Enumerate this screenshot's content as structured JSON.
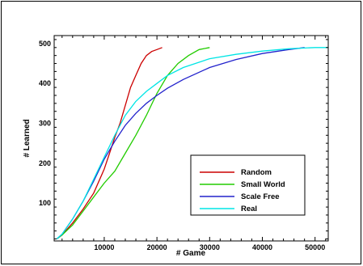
{
  "chart_data": {
    "type": "line",
    "title": "",
    "xlabel": "# Game",
    "ylabel": "# Learned",
    "xlim": [
      500,
      52500
    ],
    "ylim": [
      5,
      520
    ],
    "xticks": [
      10000,
      20000,
      30000,
      40000,
      50000
    ],
    "yticks": [
      100,
      200,
      300,
      400,
      500
    ],
    "grid": false,
    "legend_position": "lower-right",
    "series": [
      {
        "name": "Random",
        "color": "#cc0000",
        "x": [
          1000,
          2000,
          4000,
          6000,
          8000,
          10000,
          11000,
          12000,
          13000,
          14000,
          15000,
          16000,
          17000,
          18000,
          19000,
          20000,
          21000
        ],
        "y": [
          10,
          20,
          50,
          85,
          125,
          185,
          225,
          265,
          300,
          345,
          390,
          420,
          450,
          470,
          480,
          485,
          490
        ]
      },
      {
        "name": "Small World",
        "color": "#22cc00",
        "x": [
          1000,
          2000,
          4000,
          6000,
          8000,
          10000,
          12000,
          14000,
          16000,
          18000,
          20000,
          22000,
          24000,
          26000,
          28000,
          30000
        ],
        "y": [
          10,
          20,
          45,
          80,
          115,
          150,
          180,
          225,
          270,
          320,
          375,
          420,
          450,
          470,
          485,
          490
        ]
      },
      {
        "name": "Scale Free",
        "color": "#2222cc",
        "x": [
          1000,
          2000,
          4000,
          6000,
          8000,
          10000,
          12000,
          14000,
          16000,
          18000,
          20000,
          22000,
          25000,
          30000,
          35000,
          40000,
          45000,
          48000
        ],
        "y": [
          10,
          22,
          60,
          105,
          155,
          210,
          255,
          295,
          325,
          350,
          370,
          388,
          410,
          440,
          460,
          475,
          485,
          490
        ]
      },
      {
        "name": "Real",
        "color": "#00e5e5",
        "x": [
          1000,
          2000,
          4000,
          6000,
          8000,
          10000,
          12000,
          14000,
          16000,
          18000,
          20000,
          22000,
          25000,
          30000,
          35000,
          40000,
          45000,
          50000,
          52500
        ],
        "y": [
          10,
          22,
          60,
          105,
          160,
          215,
          270,
          320,
          355,
          380,
          400,
          420,
          440,
          462,
          473,
          481,
          487,
          490,
          490
        ]
      }
    ]
  }
}
